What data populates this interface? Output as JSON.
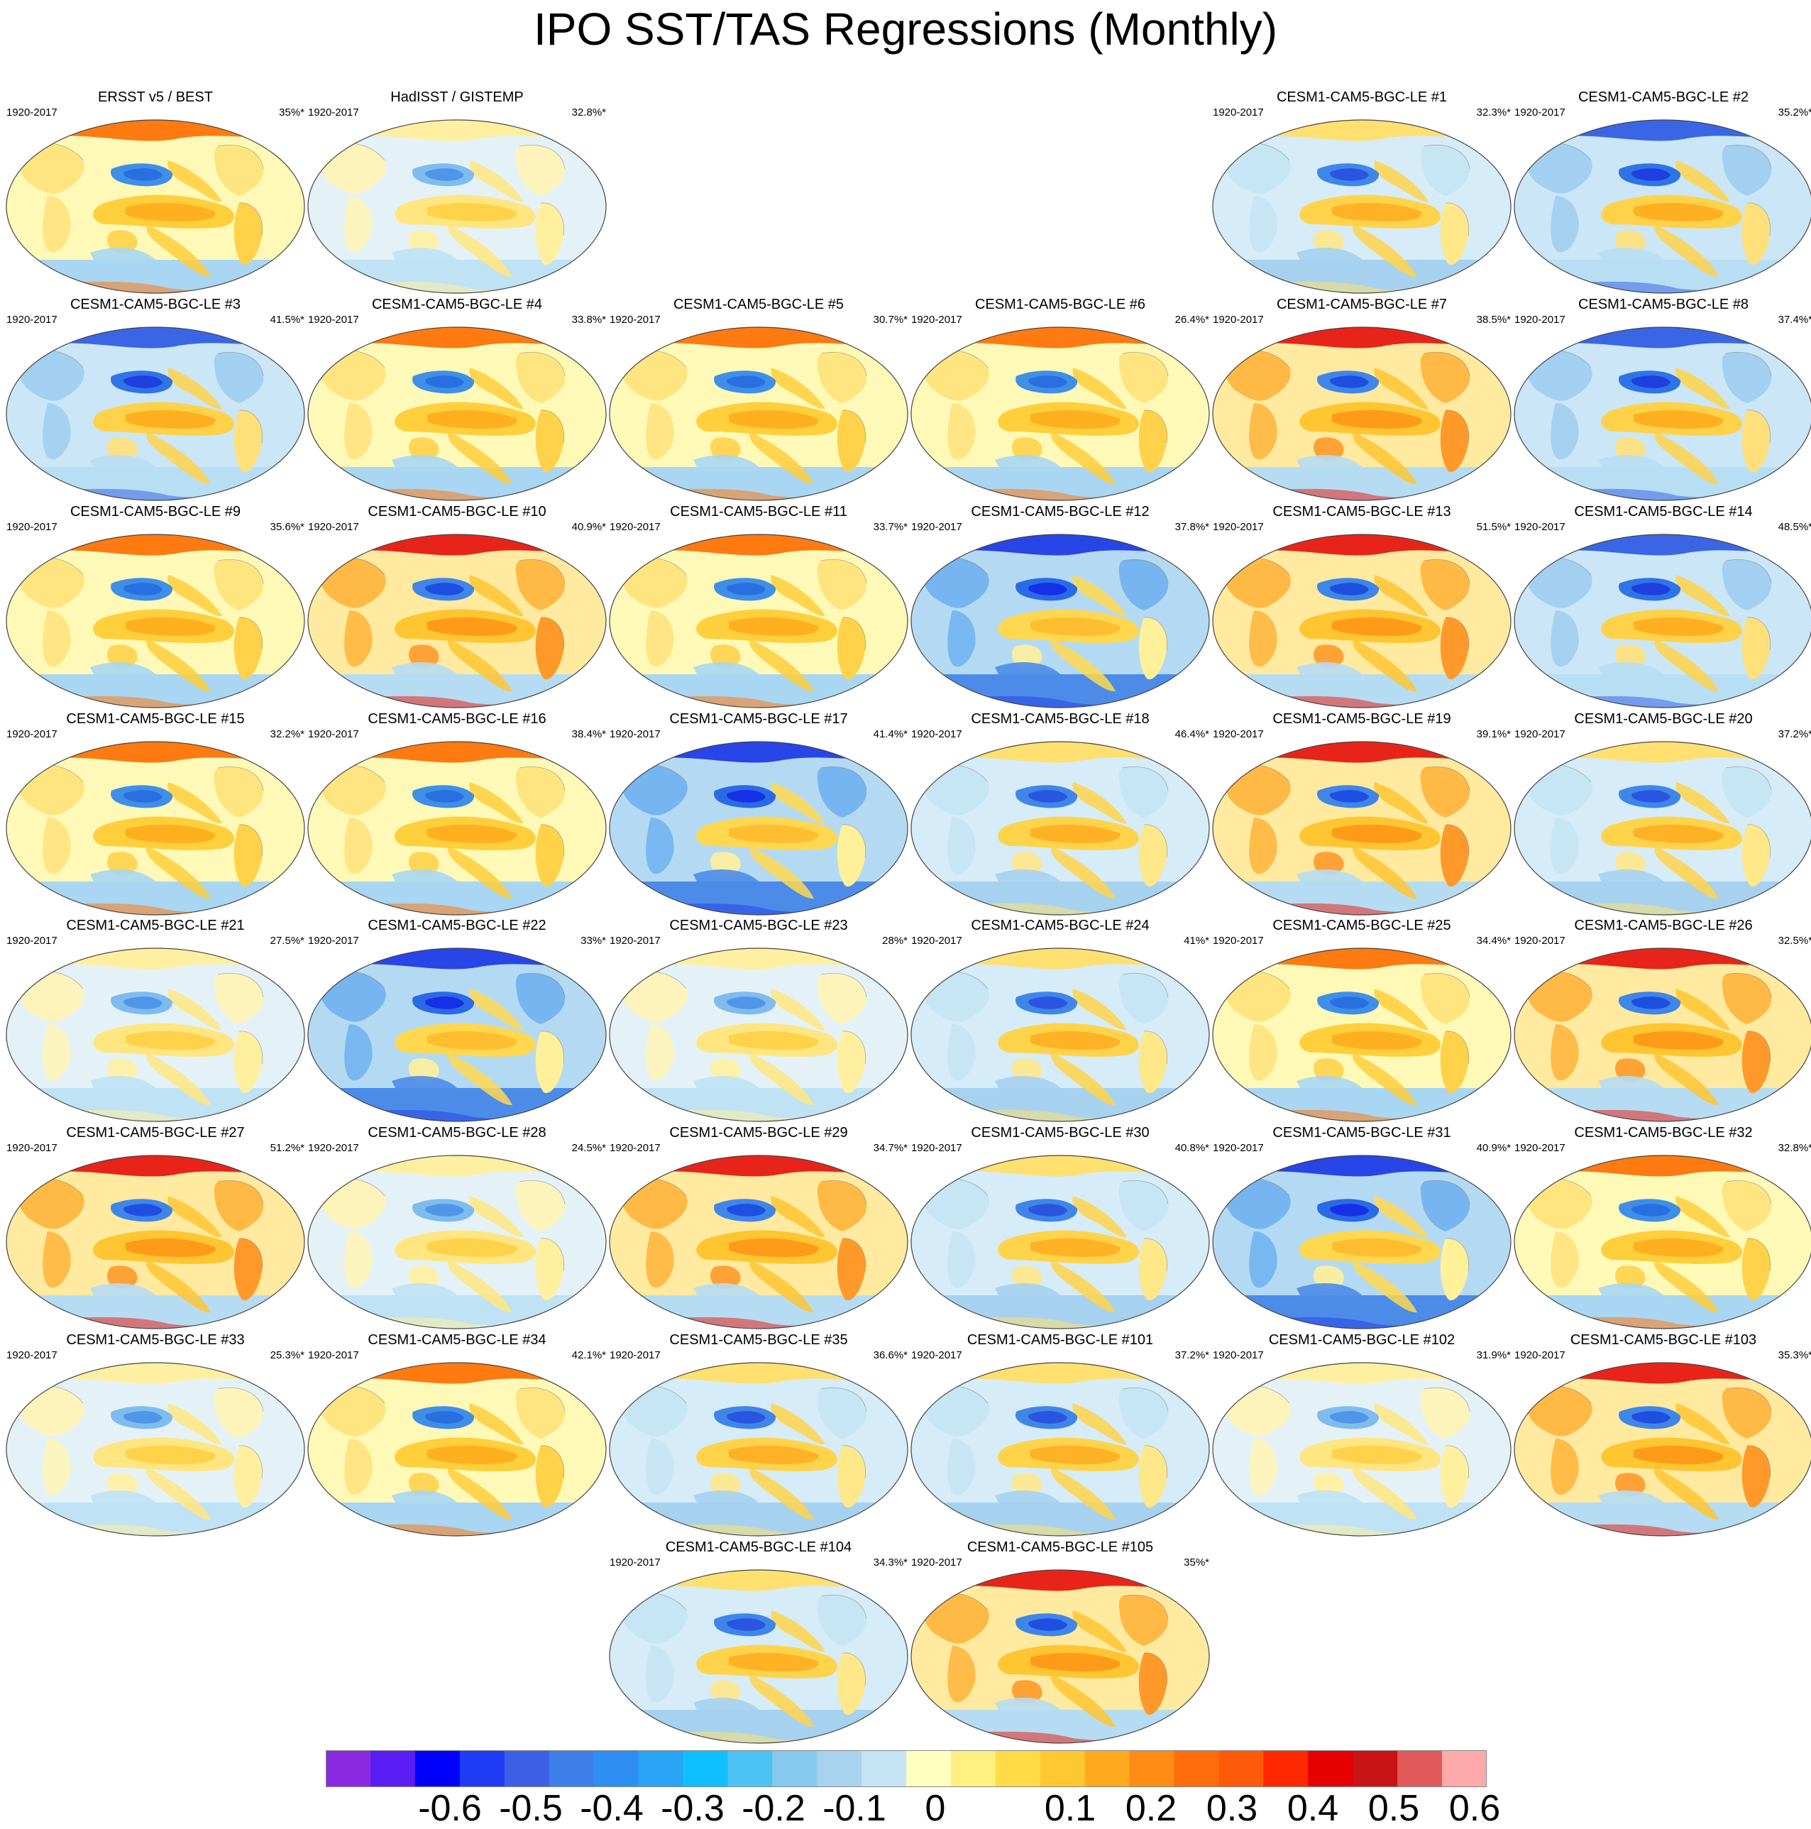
{
  "title": "IPO SST/TAS Regressions (Monthly)",
  "colorbar": {
    "colors": [
      "#8a2be2",
      "#5a1ef5",
      "#0000ff",
      "#1e3cf5",
      "#3c5fe6",
      "#3f7fe8",
      "#2f8ef2",
      "#2aa4f5",
      "#10bfff",
      "#4cc3f2",
      "#86c9ee",
      "#a7d3ee",
      "#c4e4f4",
      "#ffffc0",
      "#fff082",
      "#ffdc46",
      "#ffc832",
      "#ffaa1e",
      "#ff8c14",
      "#ff6e0a",
      "#ff5a0a",
      "#ff2800",
      "#e60000",
      "#c81414",
      "#e05a5a",
      "#ffaaaa"
    ],
    "labels": [
      "-0.6",
      "-0.5",
      "-0.4",
      "-0.3",
      "-0.2",
      "-0.1",
      "0",
      "0.1",
      "0.2",
      "0.3",
      "0.4",
      "0.5",
      "0.6"
    ]
  },
  "panels": [
    {
      "title": "ERSST v5 / BEST",
      "period": "1920-2017",
      "percent": "35%*",
      "col": 0,
      "row": 0,
      "style": "warm"
    },
    {
      "title": "HadISST / GISTEMP",
      "period": "1920-2017",
      "percent": "32.8%*",
      "col": 1,
      "row": 0,
      "style": "pale"
    },
    {
      "title": "CESM1-CAM5-BGC-LE #1",
      "period": "1920-2017",
      "percent": "32.3%*",
      "col": 4,
      "row": 0,
      "style": "normal"
    },
    {
      "title": "CESM1-CAM5-BGC-LE #2",
      "period": "1920-2017",
      "percent": "35.2%*",
      "col": 5,
      "row": 0,
      "style": "coolnorth"
    },
    {
      "title": "CESM1-CAM5-BGC-LE #3",
      "period": "1920-2017",
      "percent": "41.5%*",
      "col": 0,
      "row": 1,
      "style": "coolnorth"
    },
    {
      "title": "CESM1-CAM5-BGC-LE #4",
      "period": "1920-2017",
      "percent": "33.8%*",
      "col": 1,
      "row": 1,
      "style": "warm"
    },
    {
      "title": "CESM1-CAM5-BGC-LE #5",
      "period": "1920-2017",
      "percent": "30.7%*",
      "col": 2,
      "row": 1,
      "style": "warm"
    },
    {
      "title": "CESM1-CAM5-BGC-LE #6",
      "period": "1920-2017",
      "percent": "26.4%*",
      "col": 3,
      "row": 1,
      "style": "warm"
    },
    {
      "title": "CESM1-CAM5-BGC-LE #7",
      "period": "1920-2017",
      "percent": "38.5%*",
      "col": 4,
      "row": 1,
      "style": "hot"
    },
    {
      "title": "CESM1-CAM5-BGC-LE #8",
      "period": "1920-2017",
      "percent": "37.4%*",
      "col": 5,
      "row": 1,
      "style": "coolnorth"
    },
    {
      "title": "CESM1-CAM5-BGC-LE #9",
      "period": "1920-2017",
      "percent": "35.6%*",
      "col": 0,
      "row": 2,
      "style": "warm"
    },
    {
      "title": "CESM1-CAM5-BGC-LE #10",
      "period": "1920-2017",
      "percent": "40.9%*",
      "col": 1,
      "row": 2,
      "style": "hot"
    },
    {
      "title": "CESM1-CAM5-BGC-LE #11",
      "period": "1920-2017",
      "percent": "33.7%*",
      "col": 2,
      "row": 2,
      "style": "warm"
    },
    {
      "title": "CESM1-CAM5-BGC-LE #12",
      "period": "1920-2017",
      "percent": "37.8%*",
      "col": 3,
      "row": 2,
      "style": "cold"
    },
    {
      "title": "CESM1-CAM5-BGC-LE #13",
      "period": "1920-2017",
      "percent": "51.5%*",
      "col": 4,
      "row": 2,
      "style": "hot"
    },
    {
      "title": "CESM1-CAM5-BGC-LE #14",
      "period": "1920-2017",
      "percent": "48.5%*",
      "col": 5,
      "row": 2,
      "style": "coolnorth"
    },
    {
      "title": "CESM1-CAM5-BGC-LE #15",
      "period": "1920-2017",
      "percent": "32.2%*",
      "col": 0,
      "row": 3,
      "style": "warm"
    },
    {
      "title": "CESM1-CAM5-BGC-LE #16",
      "period": "1920-2017",
      "percent": "38.4%*",
      "col": 1,
      "row": 3,
      "style": "warm"
    },
    {
      "title": "CESM1-CAM5-BGC-LE #17",
      "period": "1920-2017",
      "percent": "41.4%*",
      "col": 2,
      "row": 3,
      "style": "cold"
    },
    {
      "title": "CESM1-CAM5-BGC-LE #18",
      "period": "1920-2017",
      "percent": "46.4%*",
      "col": 3,
      "row": 3,
      "style": "normal"
    },
    {
      "title": "CESM1-CAM5-BGC-LE #19",
      "period": "1920-2017",
      "percent": "39.1%*",
      "col": 4,
      "row": 3,
      "style": "hot"
    },
    {
      "title": "CESM1-CAM5-BGC-LE #20",
      "period": "1920-2017",
      "percent": "37.2%*",
      "col": 5,
      "row": 3,
      "style": "normal"
    },
    {
      "title": "CESM1-CAM5-BGC-LE #21",
      "period": "1920-2017",
      "percent": "27.5%*",
      "col": 0,
      "row": 4,
      "style": "pale"
    },
    {
      "title": "CESM1-CAM5-BGC-LE #22",
      "period": "1920-2017",
      "percent": "33%*",
      "col": 1,
      "row": 4,
      "style": "cold"
    },
    {
      "title": "CESM1-CAM5-BGC-LE #23",
      "period": "1920-2017",
      "percent": "28%*",
      "col": 2,
      "row": 4,
      "style": "pale"
    },
    {
      "title": "CESM1-CAM5-BGC-LE #24",
      "period": "1920-2017",
      "percent": "41%*",
      "col": 3,
      "row": 4,
      "style": "normal"
    },
    {
      "title": "CESM1-CAM5-BGC-LE #25",
      "period": "1920-2017",
      "percent": "34.4%*",
      "col": 4,
      "row": 4,
      "style": "warm"
    },
    {
      "title": "CESM1-CAM5-BGC-LE #26",
      "period": "1920-2017",
      "percent": "32.5%*",
      "col": 5,
      "row": 4,
      "style": "hot"
    },
    {
      "title": "CESM1-CAM5-BGC-LE #27",
      "period": "1920-2017",
      "percent": "51.2%*",
      "col": 0,
      "row": 5,
      "style": "hot"
    },
    {
      "title": "CESM1-CAM5-BGC-LE #28",
      "period": "1920-2017",
      "percent": "24.5%*",
      "col": 1,
      "row": 5,
      "style": "pale"
    },
    {
      "title": "CESM1-CAM5-BGC-LE #29",
      "period": "1920-2017",
      "percent": "34.7%*",
      "col": 2,
      "row": 5,
      "style": "hot"
    },
    {
      "title": "CESM1-CAM5-BGC-LE #30",
      "period": "1920-2017",
      "percent": "40.8%*",
      "col": 3,
      "row": 5,
      "style": "normal"
    },
    {
      "title": "CESM1-CAM5-BGC-LE #31",
      "period": "1920-2017",
      "percent": "40.9%*",
      "col": 4,
      "row": 5,
      "style": "cold"
    },
    {
      "title": "CESM1-CAM5-BGC-LE #32",
      "period": "1920-2017",
      "percent": "32.8%*",
      "col": 5,
      "row": 5,
      "style": "warm"
    },
    {
      "title": "CESM1-CAM5-BGC-LE #33",
      "period": "1920-2017",
      "percent": "25.3%*",
      "col": 0,
      "row": 6,
      "style": "pale"
    },
    {
      "title": "CESM1-CAM5-BGC-LE #34",
      "period": "1920-2017",
      "percent": "42.1%*",
      "col": 1,
      "row": 6,
      "style": "warm"
    },
    {
      "title": "CESM1-CAM5-BGC-LE #35",
      "period": "1920-2017",
      "percent": "36.6%*",
      "col": 2,
      "row": 6,
      "style": "normal"
    },
    {
      "title": "CESM1-CAM5-BGC-LE #101",
      "period": "1920-2017",
      "percent": "37.2%*",
      "col": 3,
      "row": 6,
      "style": "normal"
    },
    {
      "title": "CESM1-CAM5-BGC-LE #102",
      "period": "1920-2017",
      "percent": "31.9%*",
      "col": 4,
      "row": 6,
      "style": "pale"
    },
    {
      "title": "CESM1-CAM5-BGC-LE #103",
      "period": "1920-2017",
      "percent": "35.3%*",
      "col": 5,
      "row": 6,
      "style": "hot"
    },
    {
      "title": "CESM1-CAM5-BGC-LE #104",
      "period": "1920-2017",
      "percent": "34.3%*",
      "col": 2,
      "row": 7,
      "style": "normal"
    },
    {
      "title": "CESM1-CAM5-BGC-LE #105",
      "period": "1920-2017",
      "percent": "35%*",
      "col": 3,
      "row": 7,
      "style": "hot"
    }
  ]
}
